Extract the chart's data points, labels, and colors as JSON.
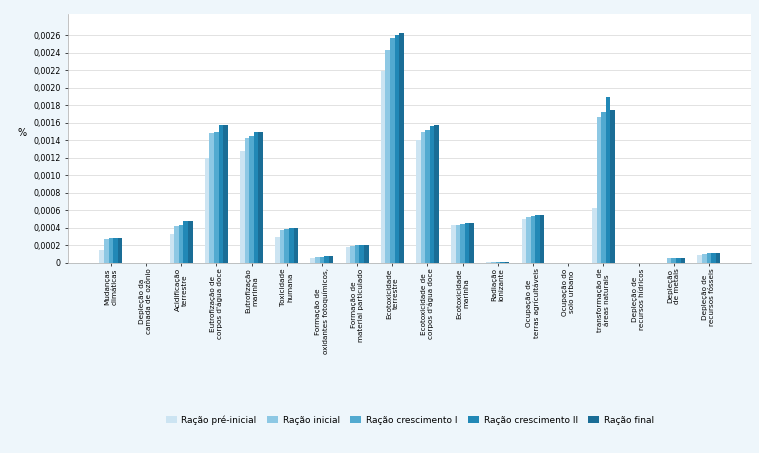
{
  "categories": [
    "Mudanças\nclimáticas",
    "Depleção da\ncamada de ozônio",
    "Acidificação\nterrestre",
    "Eutrofização de\ncorpos d'água doce",
    "Eutrofização\nmarinha",
    "Toxicidade\nhumana",
    "Formação de\noxidantes fotoquímicos,",
    "Formação de\nmaterial particulado",
    "Ecotoxicidade\nterrestre",
    "Ecotoxicidade de\ncorpos d'água doce",
    "Ecotoxicidade\nmarinha",
    "Radiação\nionizante",
    "Ocupação de\nterras agrícultáveis",
    "Ocupação do\nsolo urbano",
    "transformação de\náreas naturais",
    "Depleção de\nrecursos hídricos",
    "Depleção\nde metais",
    "Depleção de\nrecursos fósseis"
  ],
  "series": {
    "Ração pré-inicial": [
      0.00015,
      2e-06,
      0.00033,
      0.0012,
      0.00128,
      0.0003,
      5e-05,
      0.00018,
      0.00219,
      0.0014,
      0.00043,
      3e-06,
      0.0005,
      2e-06,
      0.00063,
      2e-06,
      2e-06,
      9e-05
    ],
    "Ração inicial": [
      0.00027,
      2e-06,
      0.00042,
      0.00148,
      0.00143,
      0.00038,
      7e-05,
      0.00019,
      0.00243,
      0.0015,
      0.00043,
      3e-06,
      0.00052,
      2e-06,
      0.00167,
      2e-06,
      5e-05,
      0.0001
    ],
    "Ração crescimento I": [
      0.00028,
      2e-06,
      0.00043,
      0.0015,
      0.00145,
      0.00039,
      7e-05,
      0.0002,
      0.00257,
      0.00152,
      0.00044,
      3e-06,
      0.00053,
      2e-06,
      0.00172,
      2e-06,
      5e-05,
      0.00011
    ],
    "Ração crescimento II": [
      0.00028,
      2e-06,
      0.00048,
      0.00157,
      0.0015,
      0.0004,
      8e-05,
      0.0002,
      0.00261,
      0.00156,
      0.00045,
      3e-06,
      0.00055,
      2e-06,
      0.0019,
      2e-06,
      5e-05,
      0.00011
    ],
    "Ração final": [
      0.00028,
      2e-06,
      0.00048,
      0.00158,
      0.0015,
      0.0004,
      8e-05,
      0.0002,
      0.00263,
      0.00157,
      0.00045,
      3e-06,
      0.00055,
      2e-06,
      0.00175,
      2e-06,
      5e-05,
      0.00011
    ]
  },
  "colors": [
    "#cce4f2",
    "#8dc8e4",
    "#52aad0",
    "#2188b6",
    "#1a6d96"
  ],
  "ylabel": "%",
  "ylim": [
    0,
    0.00285
  ],
  "yticks": [
    0,
    0.0002,
    0.0004,
    0.0006,
    0.0008,
    0.001,
    0.0012,
    0.0014,
    0.0016,
    0.0018,
    0.002,
    0.0022,
    0.0024,
    0.0026
  ],
  "legend_labels": [
    "Ração pré-inicial",
    "Ração inicial",
    "Ração crescimento I",
    "Ração crescimento II",
    "Ração final"
  ],
  "background_color": "#eef6fb",
  "plot_bg_color": "#ffffff",
  "tick_label_fontsize": 5.2,
  "ylabel_fontsize": 7,
  "legend_fontsize": 6.5
}
